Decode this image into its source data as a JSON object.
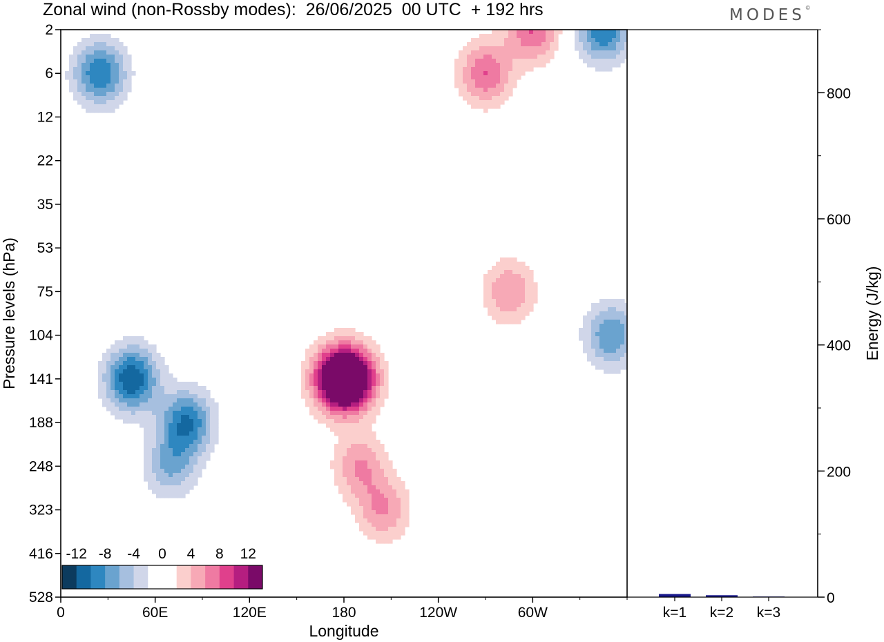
{
  "header": {
    "title": "Zonal wind (non-Rossby modes):  26/06/2025  00 UTC  + 192 hrs",
    "logo": "MODES",
    "logo_mark": "©"
  },
  "chart_data": [
    {
      "type": "heatmap",
      "title": "Zonal wind (non-Rossby modes):  26/06/2025  00 UTC  + 192 hrs",
      "xlabel": "Longitude",
      "ylabel": "Pressure levels (hPa)",
      "x_ticks": [
        "0",
        "60E",
        "120E",
        "180",
        "120W",
        "60W"
      ],
      "y_ticks": [
        "2",
        "6",
        "12",
        "22",
        "35",
        "53",
        "75",
        "104",
        "141",
        "188",
        "248",
        "323",
        "416",
        "528"
      ],
      "colorbar": {
        "labels": [
          "-12",
          "-8",
          "-4",
          "0",
          "4",
          "8",
          "12"
        ],
        "levels": [
          -14,
          -12,
          -10,
          -8,
          -6,
          -4,
          -2,
          0,
          2,
          4,
          6,
          8,
          10,
          12,
          14
        ],
        "colors": [
          "#0c3b5e",
          "#1468a0",
          "#2e87c0",
          "#6aa3cf",
          "#a6bfdf",
          "#d0d6e9",
          "#ffffff",
          "#ffffff",
          "#fbcfcd",
          "#f7a9b6",
          "#ef7aa2",
          "#e0408c",
          "#b51e80",
          "#7a0a68"
        ]
      },
      "features": [
        {
          "lon": 185,
          "level": "141",
          "value": 14
        },
        {
          "lon": 175,
          "level": "141",
          "value": 12
        },
        {
          "lon": 190,
          "level": "248",
          "value": 6
        },
        {
          "lon": 285,
          "level": "75",
          "value": 6
        },
        {
          "lon": 45,
          "level": "141",
          "value": -12
        },
        {
          "lon": 80,
          "level": "188",
          "value": -10
        },
        {
          "lon": 70,
          "level": "248",
          "value": -6
        },
        {
          "lon": 25,
          "level": "6",
          "value": -10
        },
        {
          "lon": 345,
          "level": "2",
          "value": -10
        },
        {
          "lon": 350,
          "level": "104",
          "value": -8
        },
        {
          "lon": 270,
          "level": "6",
          "value": 8
        },
        {
          "lon": 300,
          "level": "2",
          "value": 8
        },
        {
          "lon": 205,
          "level": "323",
          "value": 6
        }
      ]
    },
    {
      "type": "bar",
      "categories": [
        "k=1",
        "k=2",
        "k=3"
      ],
      "values": [
        5,
        3,
        1
      ],
      "ylabel": "Energy (J/kg)",
      "y_ticks": [
        "0",
        "200",
        "400",
        "600",
        "800"
      ],
      "ylim": [
        0,
        900
      ],
      "bar_color": "#1a1a8c"
    }
  ]
}
